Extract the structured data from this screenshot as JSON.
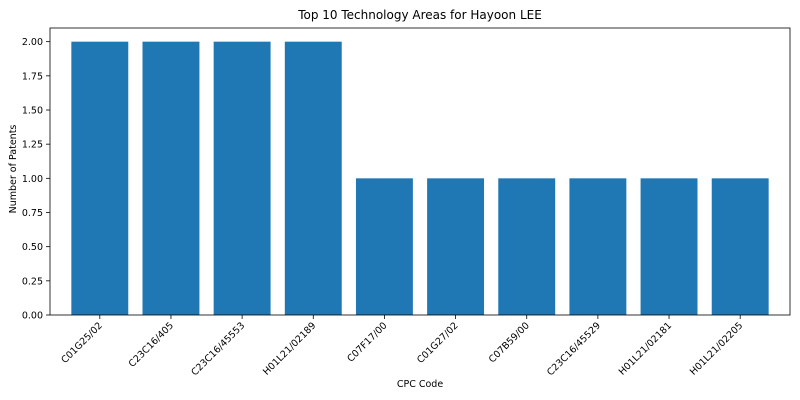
{
  "chart_data": {
    "type": "bar",
    "title": "Top 10 Technology Areas for Hayoon LEE",
    "xlabel": "CPC Code",
    "ylabel": "Number of Patents",
    "categories": [
      "C01G25/02",
      "C23C16/405",
      "C23C16/45553",
      "H01L21/02189",
      "C07F17/00",
      "C01G27/02",
      "C07B59/00",
      "C23C16/45529",
      "H01L21/02181",
      "H01L21/02205"
    ],
    "values": [
      2,
      2,
      2,
      2,
      1,
      1,
      1,
      1,
      1,
      1
    ],
    "ylim": [
      0,
      2.1
    ],
    "yticks": [
      "0.00",
      "0.25",
      "0.50",
      "0.75",
      "1.00",
      "1.25",
      "1.50",
      "1.75",
      "2.00"
    ],
    "bar_color": "#1f77b4",
    "grid": false,
    "legend": "none"
  }
}
